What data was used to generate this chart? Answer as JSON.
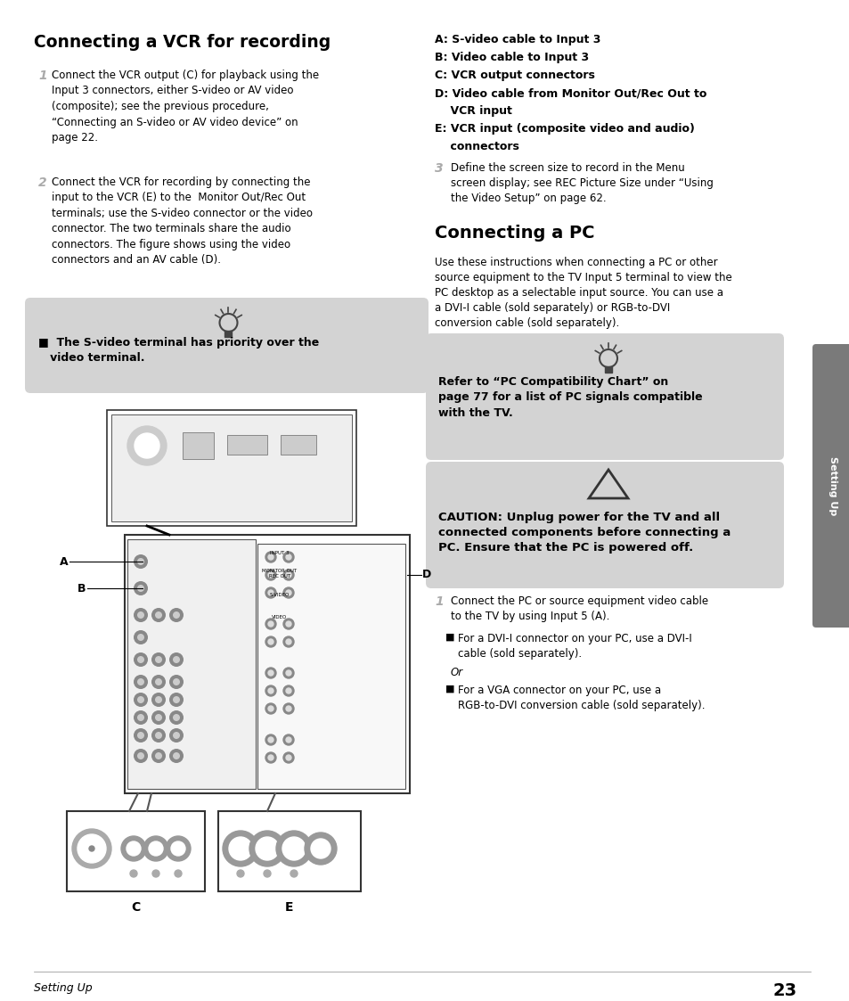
{
  "bg_color": "#ffffff",
  "sidebar_color": "#7a7a7a",
  "tip_box_color": "#d3d3d3",
  "caution_box_color": "#d3d3d3",
  "left_title": "Connecting a VCR for recording",
  "step1_num": "1",
  "step1_text": "Connect the VCR output (C) for playback using the\nInput 3 connectors, either S-video or AV video\n(composite); see the previous procedure,\n“Connecting an S-video or AV video device” on\npage 22.",
  "step2_num": "2",
  "step2_text": "Connect the VCR for recording by connecting the\ninput to the VCR (E) to the  Monitor Out/Rec Out\nterminals; use the S-video connector or the video\nconnector. The two terminals share the audio\nconnectors. The figure shows using the video\nconnectors and an AV cable (D).",
  "tip_text": "■  The S-video terminal has priority over the\n   video terminal.",
  "right_label_A": "A: S-video cable to Input 3",
  "right_label_B": "B: Video cable to Input 3",
  "right_label_C": "C: VCR output connectors",
  "right_label_D_line1": "D: Video cable from Monitor Out/Rec Out to",
  "right_label_D_line2": "    VCR input",
  "right_label_E_line1": "E: VCR input (composite video and audio)",
  "right_label_E_line2": "    connectors",
  "step3_num": "3",
  "step3_text": "Define the screen size to record in the Menu\nscreen display; see REC Picture Size under “Using\nthe Video Setup” on page 62.",
  "pc_title": "Connecting a PC",
  "pc_intro": "Use these instructions when connecting a PC or other\nsource equipment to the TV Input 5 terminal to view the\nPC desktop as a selectable input source. You can use a\na DVI-I cable (sold separately) or RGB-to-DVI\nconversion cable (sold separately).",
  "tip2_text": "Refer to “PC Compatibility Chart” on\npage 77 for a list of PC signals compatible\nwith the TV.",
  "caution_text": "CAUTION: Unplug power for the TV and all\nconnected components before connecting a\nPC. Ensure that the PC is powered off.",
  "pc_step1_num": "1",
  "pc_step1_text": "Connect the PC or source equipment video cable\nto the TV by using Input 5 (A).",
  "bullet_sq": "■",
  "bullet1_text": "For a DVI-I connector on your PC, use a DVI-I\ncable (sold separately).",
  "or_text": "Or",
  "bullet2_text": "For a VGA connector on your PC, use a\nRGB-to-DVI conversion cable (sold separately).",
  "footer_label": "Setting Up",
  "footer_page": "23",
  "sidebar_text": "Setting Up"
}
